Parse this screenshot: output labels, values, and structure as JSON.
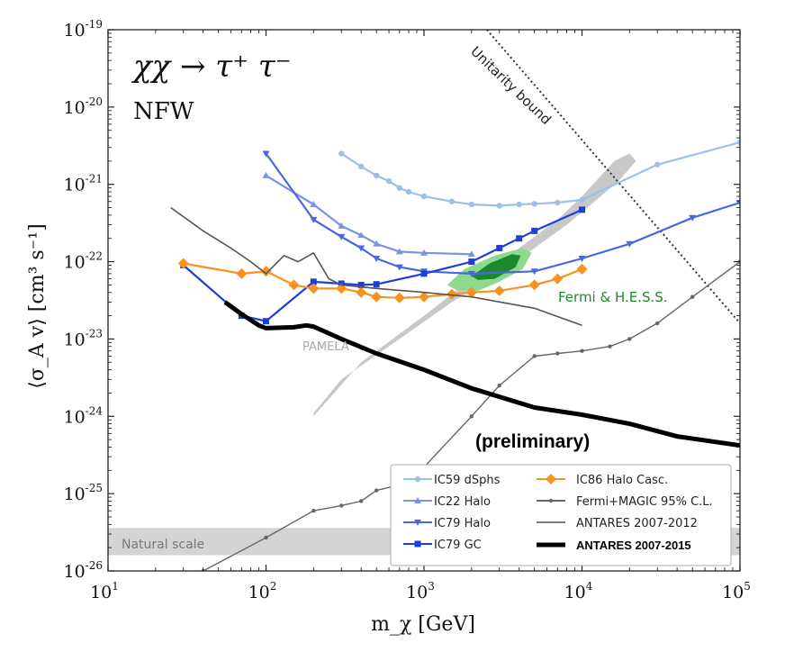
{
  "chart_data": {
    "type": "line",
    "title": "χχ → τ⁺ τ⁻",
    "subtitle": "NFW",
    "xlabel": "m_χ [GeV]",
    "ylabel": "⟨σ_A v⟩ [cm³ s⁻¹]",
    "xscale": "log",
    "yscale": "log",
    "xlim": [
      10,
      100000
    ],
    "ylim": [
      1e-26,
      1e-19
    ],
    "x_ticks": [
      {
        "base": "10",
        "exp": "1"
      },
      {
        "base": "10",
        "exp": "2"
      },
      {
        "base": "10",
        "exp": "3"
      },
      {
        "base": "10",
        "exp": "4"
      },
      {
        "base": "10",
        "exp": "5"
      }
    ],
    "y_ticks": [
      {
        "base": "10",
        "exp": "-26"
      },
      {
        "base": "10",
        "exp": "-25"
      },
      {
        "base": "10",
        "exp": "-24"
      },
      {
        "base": "10",
        "exp": "-23"
      },
      {
        "base": "10",
        "exp": "-22"
      },
      {
        "base": "10",
        "exp": "-21"
      },
      {
        "base": "10",
        "exp": "-20"
      },
      {
        "base": "10",
        "exp": "-19"
      }
    ],
    "annotations": {
      "unitarity": "Unitarity bound",
      "fermi_hess": "Fermi & H.E.S.S.",
      "pamela": "PAMELA",
      "preliminary": "(preliminary)",
      "natural_scale": "Natural scale"
    },
    "regions": {
      "natural_scale": {
        "y_range": [
          1.6e-26,
          3.6e-26
        ],
        "color": "#d4d4d4"
      },
      "pamela": {
        "color": "#c8c8c8",
        "polygon": [
          [
            200,
            1e-24
          ],
          [
            400,
            5e-24
          ],
          [
            1000,
            2e-23
          ],
          [
            2000,
            6e-23
          ],
          [
            4000,
            1.5e-22
          ],
          [
            7000,
            3.5e-22
          ],
          [
            10000,
            7e-22
          ],
          [
            16000,
            2e-21
          ],
          [
            20000,
            2.5e-21
          ],
          [
            22000,
            2e-21
          ],
          [
            17000,
            1.1e-21
          ],
          [
            12000,
            6e-22
          ],
          [
            8000,
            3e-22
          ],
          [
            5000,
            1.5e-22
          ],
          [
            3000,
            7e-23
          ],
          [
            1500,
            3e-23
          ],
          [
            700,
            1e-23
          ],
          [
            300,
            3e-24
          ],
          [
            200,
            1.1e-24
          ]
        ]
      },
      "fermi_hess_light": {
        "color": "#8ed98e",
        "polygon": [
          [
            1400,
            5e-23
          ],
          [
            1800,
            8e-23
          ],
          [
            2800,
            1.2e-22
          ],
          [
            4200,
            1.5e-22
          ],
          [
            4800,
            1.3e-22
          ],
          [
            4200,
            8e-23
          ],
          [
            3000,
            5.5e-23
          ],
          [
            2200,
            4.2e-23
          ],
          [
            1600,
            4.3e-23
          ]
        ]
      },
      "fermi_hess_dark": {
        "color": "#1a8a2a",
        "polygon": [
          [
            2000,
            6.5e-23
          ],
          [
            2600,
            9.5e-23
          ],
          [
            3600,
            1.25e-22
          ],
          [
            4100,
            1.2e-22
          ],
          [
            3800,
            8.5e-23
          ],
          [
            2800,
            6e-23
          ],
          [
            2200,
            5.8e-23
          ]
        ]
      },
      "unitarity_bound": {
        "points": [
          [
            2500,
            1e-19
          ],
          [
            100000,
            1.6e-23
          ]
        ],
        "color": "#333333"
      }
    },
    "series": [
      {
        "name": "IC59 dSphs",
        "color": "#9ebfe8",
        "marker": "circle",
        "points": [
          [
            300,
            2.5e-21
          ],
          [
            400,
            1.7e-21
          ],
          [
            500,
            1.3e-21
          ],
          [
            600,
            1.1e-21
          ],
          [
            700,
            9e-22
          ],
          [
            800,
            8e-22
          ],
          [
            1000,
            7e-22
          ],
          [
            1500,
            6e-22
          ],
          [
            2000,
            5.5e-22
          ],
          [
            3000,
            5.3e-22
          ],
          [
            4000,
            5.5e-22
          ],
          [
            5000,
            5.6e-22
          ],
          [
            7000,
            5.8e-22
          ],
          [
            10000,
            6.3e-22
          ],
          [
            30000,
            1.8e-21
          ],
          [
            100000,
            3.5e-21
          ]
        ]
      },
      {
        "name": "IC22 Halo",
        "color": "#7a94e4",
        "marker": "triangle-up",
        "points": [
          [
            100,
            1.3e-21
          ],
          [
            200,
            5.5e-22
          ],
          [
            300,
            2.9e-22
          ],
          [
            400,
            2.2e-22
          ],
          [
            500,
            1.7e-22
          ],
          [
            700,
            1.35e-22
          ],
          [
            1000,
            1.3e-22
          ],
          [
            2000,
            1.25e-22
          ]
        ]
      },
      {
        "name": "IC79 Halo",
        "color": "#4a66e0",
        "marker": "triangle-down",
        "points": [
          [
            100,
            2.5e-21
          ],
          [
            200,
            3.5e-22
          ],
          [
            300,
            2.1e-22
          ],
          [
            400,
            1.5e-22
          ],
          [
            500,
            1.1e-22
          ],
          [
            700,
            8.5e-23
          ],
          [
            1000,
            7.5e-23
          ],
          [
            2000,
            7e-23
          ],
          [
            5000,
            7.5e-23
          ],
          [
            10000,
            1.1e-22
          ],
          [
            20000,
            1.7e-22
          ],
          [
            50000,
            3.7e-22
          ],
          [
            100000,
            5.8e-22
          ]
        ]
      },
      {
        "name": "IC79 GC",
        "color": "#1d3fd9",
        "marker": "square",
        "points": [
          [
            30,
            9e-23
          ],
          [
            70,
            2e-23
          ],
          [
            100,
            1.7e-23
          ],
          [
            200,
            5.5e-23
          ],
          [
            300,
            5.2e-23
          ],
          [
            400,
            5e-23
          ],
          [
            500,
            5.1e-23
          ],
          [
            1000,
            7e-23
          ],
          [
            2000,
            1e-22
          ],
          [
            3000,
            1.5e-22
          ],
          [
            4000,
            2e-22
          ],
          [
            5000,
            2.5e-22
          ],
          [
            10000,
            4.7e-22
          ]
        ]
      },
      {
        "name": "IC86 Halo Casc.",
        "color": "#f7921e",
        "marker": "diamond",
        "points": [
          [
            30,
            9.5e-23
          ],
          [
            70,
            7e-23
          ],
          [
            100,
            7.5e-23
          ],
          [
            150,
            5e-23
          ],
          [
            200,
            4.5e-23
          ],
          [
            300,
            4.5e-23
          ],
          [
            400,
            4e-23
          ],
          [
            500,
            3.5e-23
          ],
          [
            700,
            3.4e-23
          ],
          [
            1000,
            3.5e-23
          ],
          [
            1500,
            3.8e-23
          ],
          [
            2000,
            4e-23
          ],
          [
            3000,
            4.2e-23
          ],
          [
            5000,
            5e-23
          ],
          [
            7000,
            6e-23
          ],
          [
            10000,
            8e-23
          ]
        ]
      },
      {
        "name": "Fermi+MAGIC 95% C.L.",
        "color": "#666666",
        "marker": "small-dot",
        "points": [
          [
            40,
            1e-26
          ],
          [
            100,
            2.7e-26
          ],
          [
            200,
            6e-26
          ],
          [
            300,
            7e-26
          ],
          [
            400,
            8e-26
          ],
          [
            500,
            1.1e-25
          ],
          [
            700,
            1.3e-25
          ],
          [
            1000,
            2.2e-25
          ],
          [
            2000,
            1e-24
          ],
          [
            3000,
            2.5e-24
          ],
          [
            5000,
            6e-24
          ],
          [
            7000,
            6.5e-24
          ],
          [
            10000,
            7e-24
          ],
          [
            15000,
            8e-24
          ],
          [
            20000,
            1e-23
          ],
          [
            30000,
            1.6e-23
          ],
          [
            50000,
            3.5e-23
          ],
          [
            100000,
            1e-22
          ]
        ]
      },
      {
        "name": "ANTARES 2007-2012",
        "color": "#555555",
        "marker": "none",
        "points": [
          [
            25,
            5e-22
          ],
          [
            40,
            2.5e-22
          ],
          [
            60,
            1.5e-22
          ],
          [
            80,
            1e-22
          ],
          [
            100,
            7e-23
          ],
          [
            130,
            1.2e-22
          ],
          [
            160,
            1e-22
          ],
          [
            200,
            1.3e-22
          ],
          [
            250,
            6e-23
          ],
          [
            300,
            5e-23
          ],
          [
            500,
            4.5e-23
          ],
          [
            1000,
            4e-23
          ],
          [
            2000,
            3.5e-23
          ],
          [
            5000,
            2.5e-23
          ],
          [
            10000,
            1.5e-23
          ]
        ]
      },
      {
        "name": "ANTARES 2007-2015",
        "color": "#000000",
        "marker": "none",
        "points": [
          [
            55,
            3e-23
          ],
          [
            70,
            2.1e-23
          ],
          [
            90,
            1.5e-23
          ],
          [
            100,
            1.38e-23
          ],
          [
            150,
            1.42e-23
          ],
          [
            180,
            1.5e-23
          ],
          [
            200,
            1.45e-23
          ],
          [
            300,
            1e-23
          ],
          [
            500,
            6.5e-24
          ],
          [
            1000,
            4e-24
          ],
          [
            2000,
            2.3e-24
          ],
          [
            5000,
            1.3e-24
          ],
          [
            10000,
            1.05e-24
          ],
          [
            20000,
            8e-25
          ],
          [
            40000,
            5.5e-25
          ],
          [
            100000,
            4.2e-25
          ]
        ]
      }
    ],
    "legend": {
      "placement": "bottom-right",
      "left_column": [
        "IC59 dSphs",
        "IC22 Halo",
        "IC79 Halo",
        "IC79 GC"
      ],
      "right_column": [
        "IC86 Halo Casc.",
        "Fermi+MAGIC 95% C.L.",
        "ANTARES 2007-2012",
        "ANTARES 2007-2015"
      ]
    }
  }
}
